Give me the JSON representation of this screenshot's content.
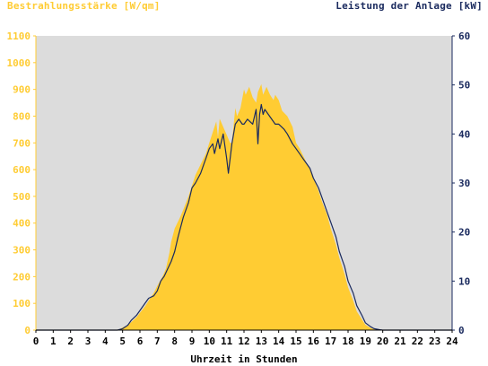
{
  "chart_data": {
    "type": "area",
    "title_left": "Bestrahlungsstärke [W/qm]",
    "title_right": "Leistung der Anlage [kW]",
    "xlabel": "Uhrzeit in Stunden",
    "xlim": [
      0,
      24
    ],
    "xticks": [
      "0",
      "1",
      "2",
      "3",
      "4",
      "5",
      "6",
      "7",
      "8",
      "9",
      "10",
      "11",
      "12",
      "13",
      "14",
      "15",
      "16",
      "17",
      "18",
      "19",
      "20",
      "21",
      "22",
      "23",
      "24"
    ],
    "y_left": {
      "lim": [
        0,
        1100
      ],
      "ticks": [
        "0",
        "100",
        "200",
        "300",
        "400",
        "500",
        "600",
        "700",
        "800",
        "900",
        "1000",
        "1100"
      ]
    },
    "y_right": {
      "lim": [
        0,
        60
      ],
      "ticks": [
        "0",
        "10",
        "20",
        "30",
        "40",
        "50",
        "60"
      ]
    },
    "grid": false,
    "colors": {
      "plot_background": "#dcdcdc",
      "irradiance_fill": "#ffcc33",
      "power_line": "#1a2a5e",
      "left_axis_text": "#ffcc33",
      "right_axis_text": "#1a2a5e",
      "x_axis_text": "#000000"
    },
    "series": [
      {
        "name": "Bestrahlungsstärke [W/qm]",
        "axis": "left",
        "style": "filled-area",
        "x": [
          0,
          4.5,
          4.8,
          5,
          5.3,
          5.5,
          5.8,
          6,
          6.3,
          6.5,
          6.8,
          7,
          7.3,
          7.5,
          7.7,
          7.8,
          8,
          8.3,
          8.5,
          8.8,
          9,
          9.2,
          9.5,
          9.8,
          10,
          10.2,
          10.4,
          10.5,
          10.6,
          10.8,
          11,
          11.2,
          11.3,
          11.5,
          11.6,
          11.8,
          12,
          12.1,
          12.3,
          12.5,
          12.7,
          12.8,
          13,
          13.1,
          13.3,
          13.5,
          13.7,
          13.8,
          14,
          14.2,
          14.5,
          14.8,
          15,
          15.2,
          15.5,
          15.8,
          16,
          16.3,
          16.5,
          16.8,
          17,
          17.3,
          17.5,
          17.8,
          18,
          18.3,
          18.5,
          18.8,
          19,
          19.3,
          19.5,
          19.8,
          20,
          20.3,
          20.5,
          21,
          24
        ],
        "y": [
          0,
          0,
          3,
          10,
          18,
          30,
          48,
          65,
          90,
          110,
          140,
          165,
          200,
          230,
          290,
          330,
          380,
          420,
          450,
          500,
          540,
          580,
          620,
          660,
          700,
          740,
          780,
          720,
          790,
          760,
          730,
          700,
          700,
          830,
          800,
          830,
          900,
          880,
          910,
          870,
          850,
          890,
          920,
          880,
          910,
          880,
          860,
          880,
          860,
          820,
          800,
          760,
          700,
          680,
          640,
          600,
          570,
          520,
          480,
          430,
          380,
          320,
          270,
          210,
          160,
          110,
          70,
          40,
          20,
          8,
          3,
          0,
          0,
          0,
          0,
          0,
          0
        ]
      },
      {
        "name": "Leistung der Anlage [kW]",
        "axis": "right",
        "style": "line",
        "x": [
          0,
          4.7,
          5,
          5.3,
          5.5,
          5.8,
          6,
          6.3,
          6.5,
          6.8,
          7,
          7.2,
          7.4,
          7.6,
          7.8,
          8,
          8.2,
          8.5,
          8.8,
          9,
          9.2,
          9.5,
          9.8,
          10,
          10.2,
          10.3,
          10.5,
          10.6,
          10.8,
          11,
          11.1,
          11.3,
          11.5,
          11.7,
          11.9,
          12,
          12.2,
          12.5,
          12.7,
          12.8,
          12.9,
          13,
          13.1,
          13.2,
          13.4,
          13.6,
          13.8,
          14,
          14.3,
          14.5,
          14.8,
          15,
          15.2,
          15.4,
          15.6,
          15.8,
          16,
          16.3,
          16.5,
          16.8,
          17,
          17.3,
          17.5,
          17.8,
          18,
          18.3,
          18.5,
          18.8,
          19,
          19.3,
          19.5,
          19.8,
          20,
          20.3,
          24
        ],
        "y": [
          0,
          0,
          0.3,
          1,
          2,
          3,
          4,
          5.5,
          6.5,
          7,
          8,
          10,
          11,
          12.5,
          14,
          16,
          19,
          23,
          26,
          29,
          30,
          32,
          35,
          37,
          38,
          36,
          39,
          37,
          40,
          35,
          32,
          38,
          42,
          43,
          42,
          42,
          43,
          42,
          45,
          38,
          44,
          46,
          44,
          45,
          44,
          43,
          42,
          42,
          41,
          40,
          38,
          37,
          36,
          35,
          34,
          33,
          31,
          29,
          27,
          24,
          22,
          19,
          16,
          13,
          10,
          7.5,
          5,
          3,
          1.5,
          0.7,
          0.3,
          0.1,
          0,
          0,
          0
        ]
      }
    ]
  }
}
